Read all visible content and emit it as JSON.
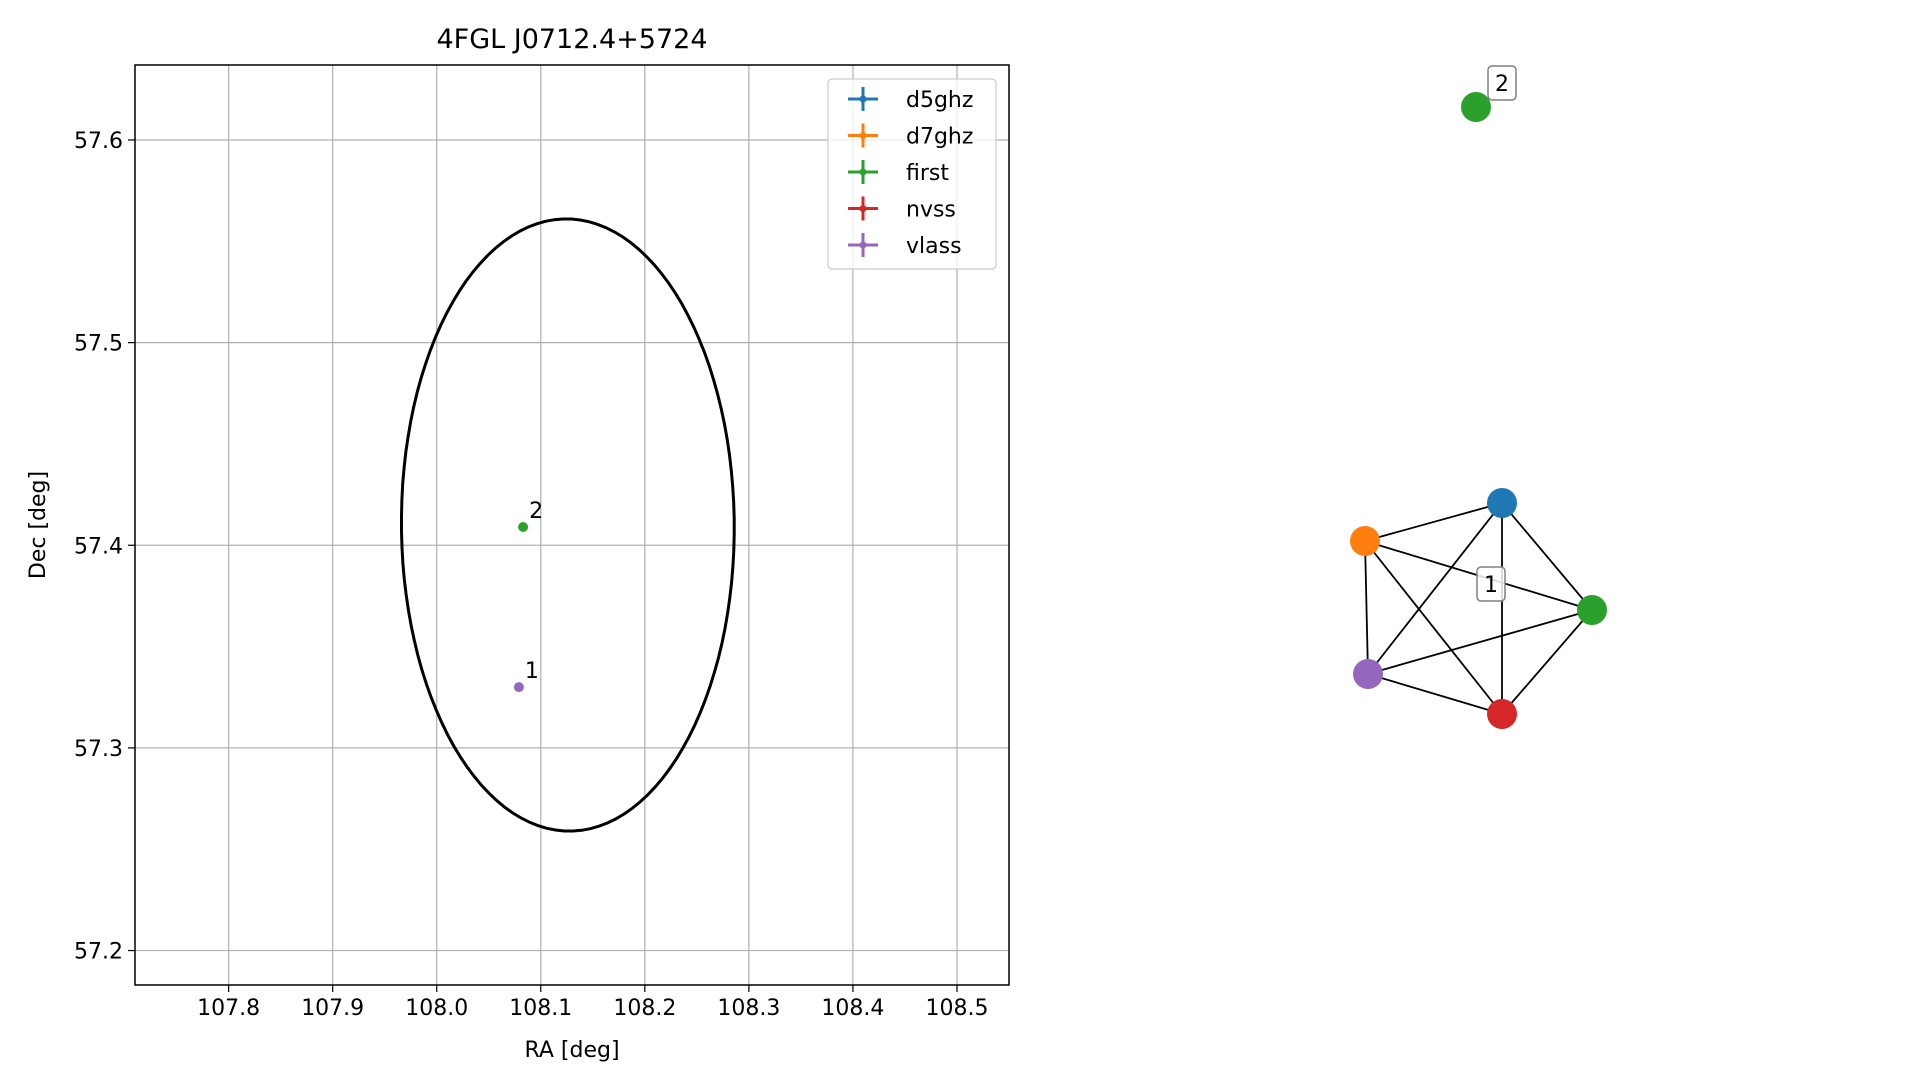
{
  "chart_data": [
    {
      "type": "scatter",
      "title": "4FGL J0712.4+5724",
      "xlabel": "RA [deg]",
      "ylabel": "Dec [deg]",
      "xlim": [
        107.71,
        108.55
      ],
      "ylim": [
        57.183,
        57.637
      ],
      "xticks": [
        107.8,
        107.9,
        108.0,
        108.1,
        108.2,
        108.3,
        108.4,
        108.5
      ],
      "xtick_labels": [
        "107.8",
        "107.9",
        "108.0",
        "108.1",
        "108.2",
        "108.3",
        "108.4",
        "108.5"
      ],
      "yticks": [
        57.2,
        57.3,
        57.4,
        57.5,
        57.6
      ],
      "ytick_labels": [
        "57.2",
        "57.3",
        "57.4",
        "57.5",
        "57.6"
      ],
      "grid": true,
      "legend_position": "top-right",
      "legend": [
        {
          "name": "d5ghz",
          "color": "#1f77b4"
        },
        {
          "name": "d7ghz",
          "color": "#ff7f0e"
        },
        {
          "name": "first",
          "color": "#2ca02c"
        },
        {
          "name": "nvss",
          "color": "#d62728"
        },
        {
          "name": "vlass",
          "color": "#9467bd"
        }
      ],
      "points": [
        {
          "label": "2",
          "ra": 108.083,
          "dec": 57.409,
          "color": "#2ca02c"
        },
        {
          "label": "1",
          "ra": 108.079,
          "dec": 57.33,
          "color": "#9467bd"
        }
      ],
      "ellipse": {
        "center_ra": 108.126,
        "center_dec": 57.41,
        "semi_ra": 0.16,
        "semi_dec": 0.151,
        "tilt_deg": -4.5,
        "color": "#000000"
      }
    },
    {
      "type": "graph",
      "nodes": [
        {
          "id": "d5ghz",
          "color": "#1f77b4"
        },
        {
          "id": "d7ghz",
          "color": "#ff7f0e"
        },
        {
          "id": "first_a",
          "color": "#2ca02c"
        },
        {
          "id": "nvss",
          "color": "#d62728"
        },
        {
          "id": "vlass",
          "color": "#9467bd"
        },
        {
          "id": "first_b",
          "color": "#2ca02c"
        }
      ],
      "edges": [
        [
          "d5ghz",
          "d7ghz"
        ],
        [
          "d5ghz",
          "first_a"
        ],
        [
          "d5ghz",
          "nvss"
        ],
        [
          "d5ghz",
          "vlass"
        ],
        [
          "d7ghz",
          "first_a"
        ],
        [
          "d7ghz",
          "nvss"
        ],
        [
          "d7ghz",
          "vlass"
        ],
        [
          "first_a",
          "nvss"
        ],
        [
          "first_a",
          "vlass"
        ],
        [
          "nvss",
          "vlass"
        ]
      ],
      "component_labels": [
        "1",
        "2"
      ]
    }
  ]
}
